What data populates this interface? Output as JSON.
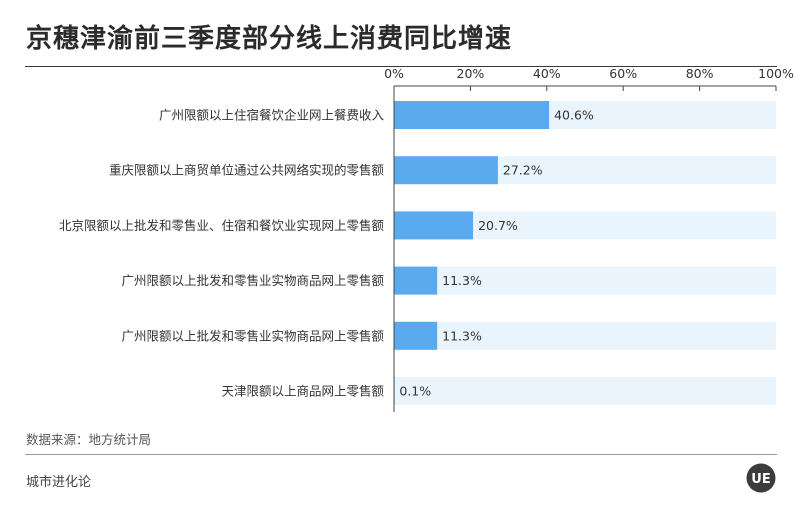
{
  "header": {
    "title": "京穗津渝前三季度部分线上消费同比增速"
  },
  "chart_data": {
    "type": "bar",
    "orientation": "horizontal",
    "xlim": [
      0,
      100
    ],
    "x_ticks": [
      "0%",
      "20%",
      "40%",
      "60%",
      "80%",
      "100%"
    ],
    "categories": [
      "广州限额以上住宿餐饮企业网上餐费收入",
      "重庆限额以上商贸单位通过公共网络实现的零售额",
      "北京限额以上批发和零售业、住宿和餐饮业实现网上零售额",
      "广州限额以上批发和零售业实物商品网上零售额",
      "广州限额以上批发和零售业实物商品网上零售额",
      "天津限额以上商品网上零售额"
    ],
    "values": [
      40.6,
      27.2,
      20.7,
      11.3,
      11.3,
      0.1
    ],
    "value_labels": [
      "40.6%",
      "27.2%",
      "20.7%",
      "11.3%",
      "11.3%",
      "0.1%"
    ],
    "colors": {
      "bar": "#5aaaf0",
      "track": "#eaf4fd",
      "axis": "#444444",
      "text": "#333333"
    },
    "grid": false,
    "legend": "none"
  },
  "footer": {
    "source": "数据来源：地方统计局",
    "brand": "城市进化论",
    "logo_text": "UE"
  }
}
